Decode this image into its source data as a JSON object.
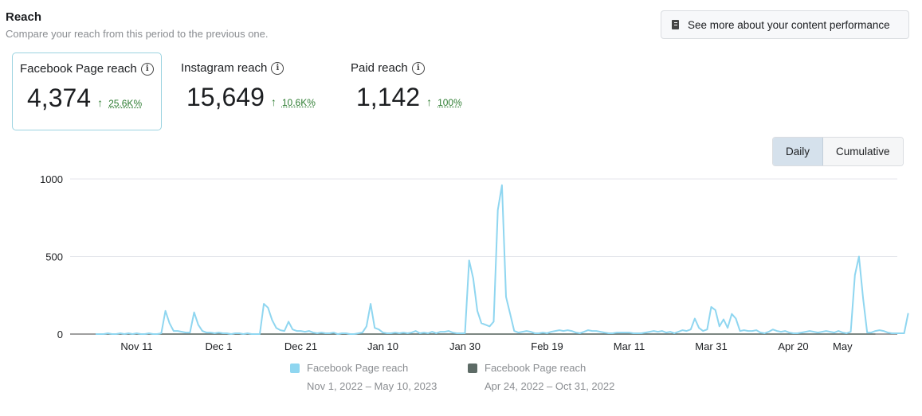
{
  "header": {
    "title": "Reach",
    "subtitle": "Compare your reach from this period to the previous one.",
    "performance_button": "See more about your content performance"
  },
  "metrics": [
    {
      "label": "Facebook Page reach",
      "value": "4,374",
      "change": "25.6K%",
      "trend": "up"
    },
    {
      "label": "Instagram reach",
      "value": "15,649",
      "change": "10.6K%",
      "trend": "up"
    },
    {
      "label": "Paid reach",
      "value": "1,142",
      "change": "100%",
      "trend": "up"
    }
  ],
  "view_toggle": {
    "options": [
      "Daily",
      "Cumulative"
    ],
    "selected": "Daily"
  },
  "legend": [
    {
      "name": "Facebook Page reach",
      "range": "Nov 1, 2022 – May 10, 2023",
      "color": "#8fd6f0"
    },
    {
      "name": "Facebook Page reach",
      "range": "Apr 24, 2022 – Oct 31, 2022",
      "color": "#5d6b66"
    }
  ],
  "chart_data": {
    "type": "line",
    "y_ticks": [
      0,
      500,
      1000
    ],
    "ylim": [
      0,
      1000
    ],
    "x_tick_labels": [
      {
        "label": "Nov 11",
        "day": 10
      },
      {
        "label": "Dec 1",
        "day": 30
      },
      {
        "label": "Dec 21",
        "day": 50
      },
      {
        "label": "Jan 10",
        "day": 70
      },
      {
        "label": "Jan 30",
        "day": 90
      },
      {
        "label": "Feb 19",
        "day": 110
      },
      {
        "label": "Mar 11",
        "day": 130
      },
      {
        "label": "Mar 31",
        "day": 150
      },
      {
        "label": "Apr 20",
        "day": 170
      },
      {
        "label": "May",
        "day": 182
      }
    ],
    "grid": true,
    "series": [
      {
        "name": "Facebook Page reach",
        "color": "#8fd6f0",
        "values": [
          0,
          0,
          0,
          5,
          0,
          0,
          5,
          0,
          5,
          0,
          5,
          0,
          0,
          5,
          0,
          0,
          5,
          150,
          70,
          20,
          20,
          15,
          10,
          10,
          140,
          60,
          20,
          10,
          10,
          5,
          10,
          5,
          5,
          0,
          5,
          5,
          0,
          5,
          0,
          0,
          0,
          195,
          170,
          90,
          40,
          25,
          20,
          80,
          30,
          20,
          20,
          15,
          20,
          10,
          5,
          10,
          5,
          5,
          10,
          0,
          5,
          5,
          0,
          0,
          5,
          10,
          50,
          195,
          40,
          30,
          10,
          5,
          5,
          10,
          5,
          10,
          5,
          10,
          20,
          5,
          10,
          5,
          15,
          5,
          15,
          15,
          20,
          10,
          5,
          5,
          5,
          475,
          360,
          150,
          70,
          60,
          50,
          80,
          800,
          960,
          240,
          130,
          20,
          10,
          15,
          20,
          15,
          5,
          5,
          10,
          5,
          15,
          20,
          25,
          20,
          25,
          20,
          10,
          5,
          15,
          25,
          20,
          20,
          15,
          10,
          5,
          5,
          10,
          10,
          10,
          10,
          5,
          5,
          5,
          10,
          15,
          20,
          15,
          20,
          10,
          15,
          5,
          15,
          25,
          20,
          30,
          100,
          40,
          20,
          30,
          175,
          155,
          50,
          95,
          40,
          130,
          100,
          20,
          25,
          20,
          20,
          25,
          10,
          5,
          15,
          30,
          20,
          15,
          20,
          10,
          5,
          5,
          10,
          15,
          20,
          15,
          10,
          15,
          20,
          15,
          10,
          20,
          10,
          5,
          15,
          380,
          500,
          230,
          10,
          10,
          20,
          25,
          20,
          10,
          5,
          5,
          5,
          5,
          135
        ]
      },
      {
        "name": "Facebook Page reach",
        "color": "#5d6b66",
        "values": [
          0,
          0,
          0,
          0,
          0,
          0,
          0,
          0,
          0,
          0,
          0,
          0,
          0,
          0,
          0,
          0,
          0,
          0,
          0,
          0,
          0,
          0,
          0,
          0,
          0,
          0,
          0,
          0,
          0,
          0,
          0,
          0,
          0,
          0,
          0,
          0,
          0,
          0,
          0,
          0,
          0,
          0,
          0,
          0,
          0,
          0,
          0,
          0,
          0,
          0,
          0,
          0,
          0,
          0,
          0,
          0,
          0,
          0,
          0,
          0,
          0,
          0,
          0,
          0,
          0,
          0,
          0,
          0,
          0,
          0,
          0,
          0,
          0,
          0,
          0,
          0,
          0,
          0,
          0,
          0,
          0,
          0,
          0,
          0,
          0,
          0,
          0,
          0,
          0,
          0,
          0,
          0,
          0,
          0,
          0,
          0,
          0,
          0,
          0,
          0,
          0,
          0,
          0,
          0,
          0,
          0,
          0,
          0,
          0,
          0,
          0,
          0,
          0,
          0,
          0,
          0,
          0,
          0,
          0,
          0,
          0,
          0,
          0,
          0,
          0,
          0,
          0,
          0,
          0,
          0,
          0,
          0,
          0,
          0,
          0,
          0,
          0,
          0,
          0,
          0,
          0,
          0,
          0,
          0,
          0,
          0,
          0,
          0,
          0,
          0,
          0,
          0,
          0,
          0,
          0,
          0,
          0,
          0,
          0,
          0,
          0,
          0,
          0,
          0,
          0,
          0,
          0,
          0,
          0,
          0,
          0,
          0,
          0,
          0,
          0,
          0,
          0,
          0,
          0,
          0,
          0,
          0,
          0,
          0,
          0,
          0,
          0,
          0,
          0,
          0,
          0
        ]
      }
    ]
  }
}
